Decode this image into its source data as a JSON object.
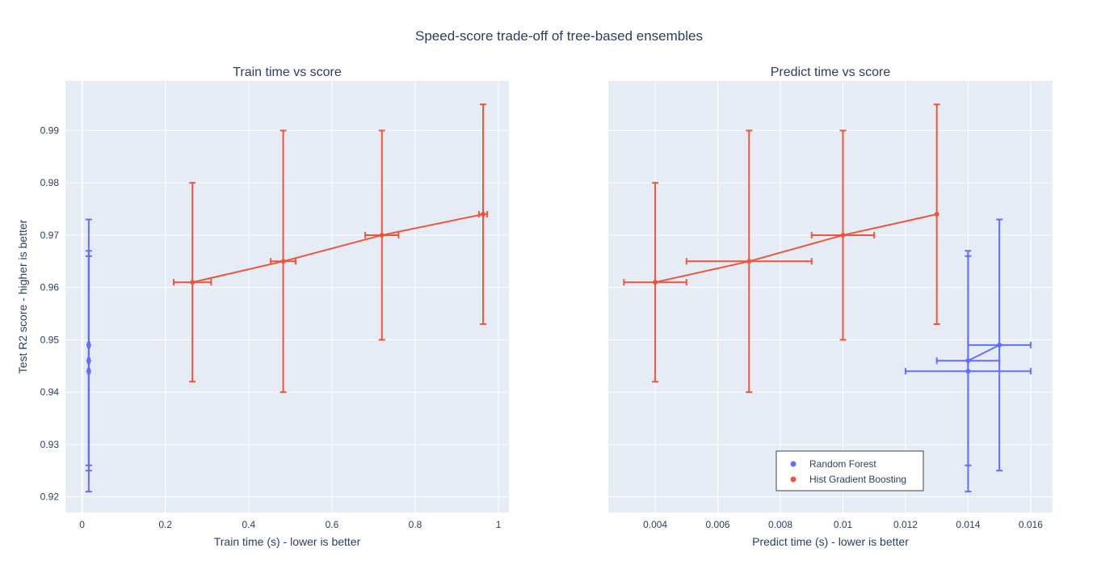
{
  "title": "Speed-score trade-off of tree-based ensembles",
  "legend": {
    "position": "bottom-right of right panel",
    "entries": [
      {
        "name": "Random Forest",
        "color": "#636efa"
      },
      {
        "name": "Hist Gradient Boosting",
        "color": "#ef553b"
      }
    ]
  },
  "colors": {
    "plot_bg": "#e5ecf6",
    "grid": "#ffffff",
    "text": "#2a3f5f"
  },
  "chart_data": [
    {
      "type": "scatter",
      "title": "Train time vs score",
      "xlabel": "Train time (s) - lower is better",
      "ylabel": "Test R2 score - higher is better",
      "xlim": [
        -0.04,
        1.025
      ],
      "ylim": [
        0.917,
        0.9995
      ],
      "xticks": [
        0,
        0.2,
        0.4,
        0.6,
        0.8,
        1
      ],
      "xtick_labels": [
        "0",
        "0.2",
        "0.4",
        "0.6",
        "0.8",
        "1"
      ],
      "yticks": [
        0.92,
        0.93,
        0.94,
        0.95,
        0.96,
        0.97,
        0.98,
        0.99
      ],
      "ytick_labels": [
        "0.92",
        "0.93",
        "0.94",
        "0.95",
        "0.96",
        "0.97",
        "0.98",
        "0.99"
      ],
      "series": [
        {
          "name": "Random Forest",
          "color": "#636efa",
          "line": false,
          "points": [
            {
              "x": 0.016,
              "y": 0.944,
              "ex": 0.002,
              "ey": 0.023
            },
            {
              "x": 0.016,
              "y": 0.946,
              "ex": 0.002,
              "ey": 0.02
            },
            {
              "x": 0.016,
              "y": 0.949,
              "ex": 0.002,
              "ey": 0.024
            }
          ]
        },
        {
          "name": "Hist Gradient Boosting",
          "color": "#ef553b",
          "line": true,
          "points": [
            {
              "x": 0.265,
              "y": 0.961,
              "ex": 0.045,
              "ey": 0.019
            },
            {
              "x": 0.483,
              "y": 0.965,
              "ex": 0.03,
              "ey": 0.025
            },
            {
              "x": 0.72,
              "y": 0.97,
              "ex": 0.04,
              "ey": 0.02
            },
            {
              "x": 0.963,
              "y": 0.974,
              "ex": 0.01,
              "ey": 0.021
            }
          ]
        }
      ]
    },
    {
      "type": "scatter",
      "title": "Predict time vs score",
      "xlabel": "Predict time (s) - lower is better",
      "ylabel": "",
      "xlim": [
        0.0025,
        0.0167
      ],
      "ylim": [
        0.917,
        0.9995
      ],
      "xticks": [
        0.004,
        0.006,
        0.008,
        0.01,
        0.012,
        0.014,
        0.016
      ],
      "xtick_labels": [
        "0.004",
        "0.006",
        "0.008",
        "0.01",
        "0.012",
        "0.014",
        "0.016"
      ],
      "yticks": [
        0.92,
        0.93,
        0.94,
        0.95,
        0.96,
        0.97,
        0.98,
        0.99
      ],
      "ytick_labels": [],
      "series": [
        {
          "name": "Random Forest",
          "color": "#636efa",
          "line": true,
          "points": [
            {
              "x": 0.014,
              "y": 0.944,
              "ex": 0.002,
              "ey": 0.023
            },
            {
              "x": 0.014,
              "y": 0.946,
              "ex": 0.001,
              "ey": 0.02
            },
            {
              "x": 0.015,
              "y": 0.949,
              "ex": 0.001,
              "ey": 0.024
            }
          ]
        },
        {
          "name": "Hist Gradient Boosting",
          "color": "#ef553b",
          "line": true,
          "points": [
            {
              "x": 0.004,
              "y": 0.961,
              "ex": 0.001,
              "ey": 0.019
            },
            {
              "x": 0.007,
              "y": 0.965,
              "ex": 0.002,
              "ey": 0.025
            },
            {
              "x": 0.01,
              "y": 0.97,
              "ex": 0.001,
              "ey": 0.02
            },
            {
              "x": 0.013,
              "y": 0.974,
              "ex": 0,
              "ey": 0.021
            }
          ]
        }
      ]
    }
  ]
}
